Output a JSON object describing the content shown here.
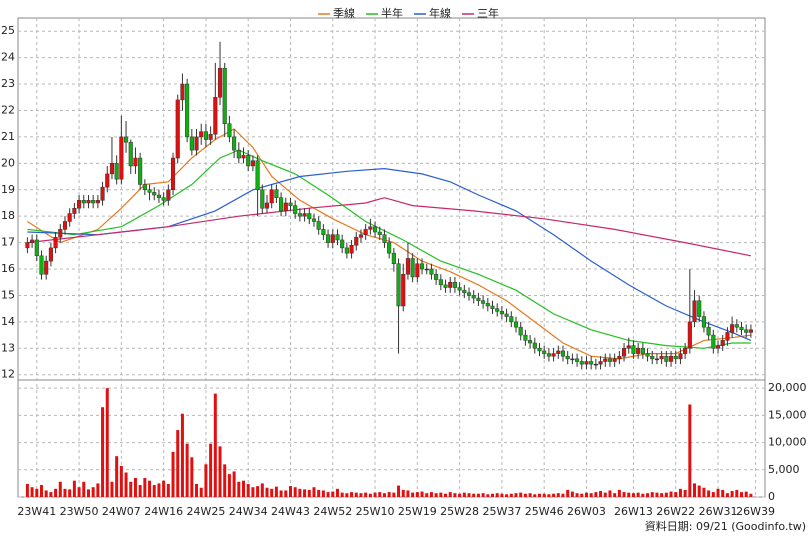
{
  "chart_data": {
    "type": "candlestick",
    "xlim": [
      -2,
      157
    ],
    "ylim": [
      11.8,
      25.5
    ],
    "yticks": [
      12,
      13,
      14,
      15,
      16,
      17,
      18,
      19,
      20,
      21,
      22,
      23,
      24,
      25
    ],
    "grid": true,
    "up_color": "#e01010",
    "down_color": "#10b010",
    "xticks": [
      {
        "value": 2,
        "label": "23W41"
      },
      {
        "value": 11,
        "label": "23W50"
      },
      {
        "value": 20,
        "label": "24W07"
      },
      {
        "value": 29,
        "label": "24W16"
      },
      {
        "value": 38,
        "label": "24W25"
      },
      {
        "value": 47,
        "label": "24W34"
      },
      {
        "value": 56,
        "label": "24W43"
      },
      {
        "value": 65,
        "label": "24W52"
      },
      {
        "value": 74,
        "label": "25W10"
      },
      {
        "value": 83,
        "label": "25W19"
      },
      {
        "value": 92,
        "label": "25W28"
      },
      {
        "value": 101,
        "label": "25W37"
      },
      {
        "value": 110,
        "label": "25W46"
      },
      {
        "value": 119,
        "label": "26W03"
      },
      {
        "value": 129,
        "label": "26W13"
      },
      {
        "value": 138,
        "label": "26W22"
      },
      {
        "value": 147,
        "label": "26W31"
      },
      {
        "value": 155,
        "label": "26W39"
      }
    ],
    "ohlc": {
      "open": [
        16.8,
        17.0,
        17.1,
        16.5,
        15.8,
        16.3,
        16.8,
        17.2,
        17.5,
        17.8,
        18.1,
        18.3,
        18.6,
        18.5,
        18.6,
        18.5,
        18.6,
        19.1,
        19.6,
        20.0,
        19.4,
        21.0,
        20.8,
        19.9,
        20.2,
        19.2,
        19.0,
        18.9,
        18.8,
        18.7,
        18.6,
        19.0,
        20.2,
        22.4,
        23.0,
        21.0,
        20.5,
        21.0,
        21.2,
        20.9,
        21.1,
        22.5,
        23.6,
        21.5,
        21.0,
        20.5,
        20.2,
        20.3,
        19.9,
        20.1,
        19.0,
        18.3,
        18.5,
        19.0,
        18.7,
        18.2,
        18.5,
        18.4,
        18.1,
        18.0,
        18.1,
        17.9,
        17.8,
        17.5,
        17.3,
        17.0,
        17.3,
        17.1,
        16.8,
        16.6,
        16.9,
        17.2,
        17.3,
        17.5,
        17.6,
        17.4,
        17.3,
        17.0,
        16.6,
        16.2,
        14.6,
        15.8,
        16.4,
        15.7,
        16.2,
        16.0,
        16.0,
        15.8,
        15.6,
        15.4,
        15.3,
        15.5,
        15.3,
        15.2,
        15.1,
        15.0,
        14.9,
        14.8,
        14.7,
        14.6,
        14.5,
        14.4,
        14.3,
        14.2,
        14.0,
        13.8,
        13.5,
        13.3,
        13.2,
        13.0,
        12.9,
        12.8,
        12.7,
        12.8,
        12.9,
        12.7,
        12.6,
        12.6,
        12.5,
        12.4,
        12.5,
        12.4,
        12.4,
        12.5,
        12.6,
        12.5,
        12.6,
        12.7,
        13.0,
        13.1,
        12.8,
        13.0,
        12.8,
        12.7,
        12.6,
        12.6,
        12.7,
        12.5,
        12.7,
        12.6,
        12.8,
        13.0,
        14.0,
        14.8,
        14.2,
        13.8,
        13.5,
        13.0,
        13.1,
        13.3,
        13.6,
        13.9,
        13.8,
        13.7,
        13.6
      ],
      "high": [
        17.2,
        17.3,
        17.3,
        16.7,
        16.5,
        17.0,
        17.4,
        17.7,
        18.0,
        18.3,
        18.5,
        18.8,
        18.8,
        18.8,
        18.8,
        18.8,
        19.3,
        19.9,
        21.0,
        20.3,
        21.8,
        21.6,
        20.9,
        20.6,
        20.4,
        19.4,
        19.2,
        19.1,
        19.0,
        18.9,
        19.2,
        20.4,
        22.6,
        23.4,
        23.2,
        21.3,
        21.3,
        21.5,
        21.5,
        21.4,
        23.8,
        24.6,
        23.8,
        21.8,
        21.3,
        20.8,
        20.6,
        20.5,
        20.3,
        20.3,
        19.2,
        18.8,
        19.2,
        19.2,
        18.9,
        18.7,
        18.7,
        18.6,
        18.3,
        18.3,
        18.3,
        18.1,
        18.0,
        17.7,
        17.5,
        17.5,
        17.5,
        17.3,
        17.0,
        17.1,
        17.4,
        17.5,
        17.7,
        17.9,
        17.8,
        17.6,
        17.5,
        17.2,
        16.8,
        16.4,
        16.2,
        17.0,
        16.6,
        16.4,
        16.4,
        16.2,
        16.2,
        16.0,
        15.8,
        15.6,
        15.7,
        15.7,
        15.5,
        15.4,
        15.3,
        15.2,
        15.1,
        15.0,
        14.9,
        14.8,
        14.7,
        14.6,
        14.5,
        14.4,
        14.2,
        14.0,
        13.7,
        13.5,
        13.4,
        13.2,
        13.1,
        13.0,
        13.0,
        13.1,
        13.1,
        12.9,
        12.8,
        12.8,
        12.7,
        12.7,
        12.7,
        12.6,
        12.7,
        12.8,
        12.8,
        12.8,
        12.9,
        13.2,
        13.4,
        13.3,
        13.2,
        13.2,
        13.0,
        12.9,
        12.8,
        12.9,
        12.9,
        12.9,
        12.9,
        13.0,
        13.2,
        16.0,
        15.2,
        15.0,
        14.4,
        14.0,
        13.7,
        13.3,
        13.5,
        13.8,
        14.2,
        14.1,
        14.0,
        13.9,
        13.9
      ],
      "low": [
        16.6,
        16.8,
        16.3,
        15.6,
        15.6,
        16.1,
        16.6,
        17.0,
        17.3,
        17.6,
        17.9,
        18.1,
        18.3,
        18.3,
        18.3,
        18.3,
        18.4,
        18.9,
        19.4,
        19.2,
        19.2,
        20.4,
        19.6,
        19.6,
        19.0,
        18.8,
        18.6,
        18.6,
        18.5,
        18.4,
        18.4,
        18.8,
        20.0,
        22.0,
        20.8,
        20.3,
        20.3,
        20.7,
        20.6,
        20.7,
        20.9,
        22.2,
        21.0,
        20.8,
        20.2,
        20.0,
        20.0,
        19.7,
        19.7,
        18.0,
        18.1,
        18.1,
        18.3,
        18.5,
        18.0,
        18.0,
        18.2,
        17.9,
        17.8,
        17.8,
        17.7,
        17.6,
        17.3,
        17.1,
        16.8,
        16.8,
        16.9,
        16.6,
        16.4,
        16.4,
        16.7,
        17.0,
        17.1,
        17.3,
        17.2,
        17.1,
        16.8,
        16.4,
        15.9,
        12.8,
        14.4,
        15.6,
        15.5,
        15.5,
        15.8,
        15.8,
        15.6,
        15.4,
        15.2,
        15.1,
        15.1,
        15.1,
        15.0,
        14.9,
        14.8,
        14.7,
        14.6,
        14.5,
        14.4,
        14.3,
        14.2,
        14.1,
        14.0,
        13.8,
        13.6,
        13.3,
        13.1,
        13.0,
        12.8,
        12.7,
        12.6,
        12.5,
        12.5,
        12.6,
        12.5,
        12.4,
        12.4,
        12.3,
        12.2,
        12.2,
        12.2,
        12.2,
        12.2,
        12.3,
        12.3,
        12.3,
        12.4,
        12.5,
        12.8,
        12.6,
        12.6,
        12.6,
        12.5,
        12.4,
        12.4,
        12.4,
        12.3,
        12.3,
        12.4,
        12.4,
        12.6,
        12.8,
        13.8,
        14.0,
        13.6,
        13.3,
        12.8,
        12.8,
        12.9,
        13.1,
        13.4,
        13.6,
        13.5,
        13.4,
        13.4
      ],
      "close": [
        17.0,
        17.1,
        16.5,
        15.8,
        16.3,
        16.8,
        17.2,
        17.5,
        17.8,
        18.1,
        18.3,
        18.6,
        18.5,
        18.6,
        18.5,
        18.6,
        19.1,
        19.6,
        20.0,
        19.4,
        21.0,
        20.8,
        19.9,
        20.2,
        19.2,
        19.0,
        18.9,
        18.8,
        18.7,
        18.6,
        19.0,
        20.2,
        22.4,
        23.0,
        21.0,
        20.5,
        21.0,
        21.2,
        20.9,
        21.1,
        22.5,
        23.6,
        21.5,
        21.0,
        20.5,
        20.2,
        20.3,
        19.9,
        20.1,
        19.0,
        18.3,
        18.5,
        19.0,
        18.7,
        18.2,
        18.5,
        18.4,
        18.1,
        18.0,
        18.1,
        17.9,
        17.8,
        17.5,
        17.3,
        17.0,
        17.3,
        17.1,
        16.8,
        16.6,
        16.9,
        17.2,
        17.3,
        17.5,
        17.6,
        17.4,
        17.3,
        17.0,
        16.6,
        16.2,
        14.6,
        15.8,
        16.4,
        15.7,
        16.2,
        16.0,
        16.0,
        15.8,
        15.6,
        15.4,
        15.3,
        15.5,
        15.3,
        15.2,
        15.1,
        15.0,
        14.9,
        14.8,
        14.7,
        14.6,
        14.5,
        14.4,
        14.3,
        14.2,
        14.0,
        13.8,
        13.5,
        13.3,
        13.2,
        13.0,
        12.9,
        12.8,
        12.7,
        12.8,
        12.9,
        12.7,
        12.6,
        12.6,
        12.5,
        12.4,
        12.5,
        12.4,
        12.4,
        12.5,
        12.6,
        12.5,
        12.6,
        12.7,
        13.0,
        13.1,
        12.8,
        13.0,
        12.8,
        12.7,
        12.6,
        12.6,
        12.7,
        12.5,
        12.7,
        12.6,
        12.8,
        13.0,
        14.0,
        14.8,
        14.2,
        13.8,
        13.5,
        13.0,
        13.1,
        13.3,
        13.6,
        13.9,
        13.8,
        13.7,
        13.6,
        13.7
      ]
    },
    "series": [
      {
        "name": "季線",
        "color": "#e8781e",
        "x": [
          0,
          7,
          15,
          20,
          25,
          30,
          35,
          40,
          44,
          48,
          52,
          58,
          65,
          72,
          78,
          84,
          90,
          96,
          102,
          108,
          114,
          120,
          126,
          132,
          138,
          144,
          150,
          154
        ],
        "values": [
          17.8,
          17.0,
          17.5,
          18.3,
          19.2,
          19.3,
          20.2,
          20.9,
          21.3,
          20.6,
          19.5,
          18.6,
          17.9,
          17.3,
          17.0,
          16.3,
          15.9,
          15.4,
          14.8,
          14.0,
          13.2,
          12.7,
          12.6,
          12.8,
          12.8,
          13.3,
          13.4,
          13.5
        ]
      },
      {
        "name": "半年",
        "color": "#22c022",
        "x": [
          0,
          10,
          20,
          28,
          35,
          41,
          45,
          50,
          57,
          64,
          72,
          80,
          88,
          96,
          104,
          112,
          120,
          128,
          136,
          144,
          150,
          154
        ],
        "values": [
          17.5,
          17.3,
          17.6,
          18.4,
          19.2,
          20.2,
          20.5,
          20.1,
          19.6,
          18.8,
          17.8,
          17.1,
          16.3,
          15.8,
          15.2,
          14.3,
          13.7,
          13.3,
          13.1,
          13.0,
          13.2,
          13.2
        ]
      },
      {
        "name": "年線",
        "color": "#2a5fd0",
        "x": [
          0,
          15,
          30,
          40,
          48,
          58,
          68,
          76,
          84,
          90,
          96,
          104,
          112,
          120,
          128,
          136,
          144,
          150,
          154
        ],
        "values": [
          17.4,
          17.3,
          17.6,
          18.2,
          19.0,
          19.5,
          19.7,
          19.8,
          19.6,
          19.3,
          18.8,
          18.2,
          17.3,
          16.3,
          15.4,
          14.6,
          14.0,
          13.6,
          13.3
        ]
      },
      {
        "name": "三年",
        "color": "#c8286a",
        "x": [
          0,
          15,
          30,
          45,
          60,
          72,
          76,
          82,
          95,
          110,
          125,
          140,
          154
        ],
        "values": [
          17.0,
          17.3,
          17.6,
          18.0,
          18.3,
          18.5,
          18.7,
          18.4,
          18.2,
          17.9,
          17.5,
          17.0,
          16.5
        ]
      }
    ],
    "volume": {
      "color": "#e01010",
      "ylim": [
        0,
        21500
      ],
      "yticks": [
        0,
        {
          "value": 5000,
          "label": "5,000"
        },
        {
          "value": 10000,
          "label": "10,000"
        },
        {
          "value": 15000,
          "label": "15,000"
        },
        {
          "value": 20000,
          "label": "20,000"
        }
      ],
      "values": [
        2400,
        1800,
        1500,
        2200,
        1200,
        900,
        1500,
        2800,
        1500,
        1400,
        3000,
        1800,
        2800,
        1400,
        1800,
        2500,
        16500,
        20000,
        2800,
        7500,
        5700,
        4500,
        2800,
        3500,
        2200,
        3500,
        3000,
        2200,
        2500,
        3000,
        2400,
        8300,
        12300,
        15300,
        9800,
        7300,
        2400,
        1700,
        6000,
        9800,
        19000,
        9300,
        6000,
        4200,
        4700,
        2800,
        3000,
        2400,
        1800,
        2000,
        2500,
        1700,
        1500,
        1900,
        1200,
        1200,
        2000,
        1800,
        1500,
        1400,
        1300,
        1800,
        1300,
        1200,
        900,
        1000,
        1500,
        800,
        700,
        900,
        800,
        700,
        800,
        600,
        800,
        900,
        700,
        900,
        800,
        2100,
        1300,
        1200,
        800,
        900,
        1000,
        700,
        900,
        700,
        800,
        600,
        900,
        700,
        600,
        800,
        700,
        600,
        600,
        700,
        500,
        600,
        700,
        600,
        500,
        600,
        700,
        800,
        600,
        700,
        500,
        600,
        600,
        500,
        600,
        700,
        600,
        1300,
        1000,
        700,
        600,
        800,
        700,
        900,
        1100,
        800,
        1200,
        700,
        1300,
        900,
        800,
        700,
        800,
        600,
        700,
        900,
        800,
        700,
        800,
        1000,
        900,
        1500,
        1300,
        17000,
        2500,
        2100,
        1700,
        1200,
        900,
        1500,
        1300,
        700,
        1100,
        1300,
        900,
        1000,
        600
      ]
    },
    "footer": "資料日期: 09/21 (Goodinfo.tw)"
  }
}
